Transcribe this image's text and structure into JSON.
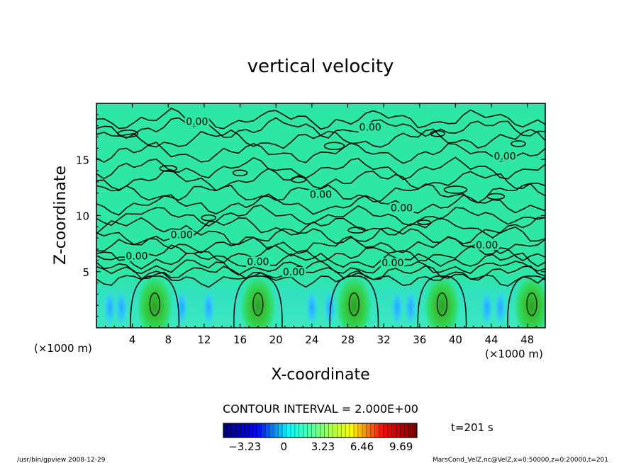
{
  "chart_data": {
    "type": "heatmap",
    "title": "vertical velocity",
    "xlabel": "X-coordinate",
    "ylabel": "Z-coordinate",
    "x_unit_left": "(×1000 m)",
    "x_unit_right": "(×1000 m)",
    "xlim": [
      0,
      50
    ],
    "ylim": [
      0,
      20
    ],
    "x_ticks": [
      4,
      8,
      12,
      16,
      20,
      24,
      28,
      32,
      36,
      40,
      44,
      48
    ],
    "y_ticks": [
      5,
      10,
      15
    ],
    "contour_interval_text": "CONTOUR INTERVAL = 2.000E+00",
    "contour_labels": [
      {
        "text": "0.00",
        "x": 11.2,
        "z": 18.2
      },
      {
        "text": "0.00",
        "x": 30.5,
        "z": 17.7
      },
      {
        "text": "0.00",
        "x": 45.5,
        "z": 15.1
      },
      {
        "text": "0.00",
        "x": 25.0,
        "z": 11.7
      },
      {
        "text": "0.00",
        "x": 34.0,
        "z": 10.5
      },
      {
        "text": "0.00",
        "x": 9.5,
        "z": 8.1
      },
      {
        "text": "0.00",
        "x": 43.5,
        "z": 7.2
      },
      {
        "text": "0.00",
        "x": 4.5,
        "z": 6.2
      },
      {
        "text": "0.00",
        "x": 18.0,
        "z": 5.7
      },
      {
        "text": "0.00",
        "x": 33.0,
        "z": 5.6
      },
      {
        "text": "0.00",
        "x": 22.0,
        "z": 4.8
      }
    ],
    "updrafts_x": [
      6.5,
      18.0,
      28.7,
      38.5,
      48.5
    ],
    "colorbar": {
      "min": -5.0,
      "max": 11.0,
      "tick_values": [
        -3.23,
        0,
        3.23,
        6.46,
        9.69
      ],
      "tick_labels": [
        "−3.23",
        "0",
        "3.23",
        "6.46",
        "9.69"
      ]
    },
    "time_label": "t=201 s",
    "colormap": [
      "#00007f",
      "#0000ff",
      "#00ffff",
      "#7fff7f",
      "#ffff00",
      "#ff0000",
      "#7f0000"
    ]
  },
  "footer": {
    "left": "/usr/bin/gpview   2008-12-29",
    "right": "MarsCond_VelZ.nc@VelZ,x=0:50000,z=0:20000,t=201"
  }
}
